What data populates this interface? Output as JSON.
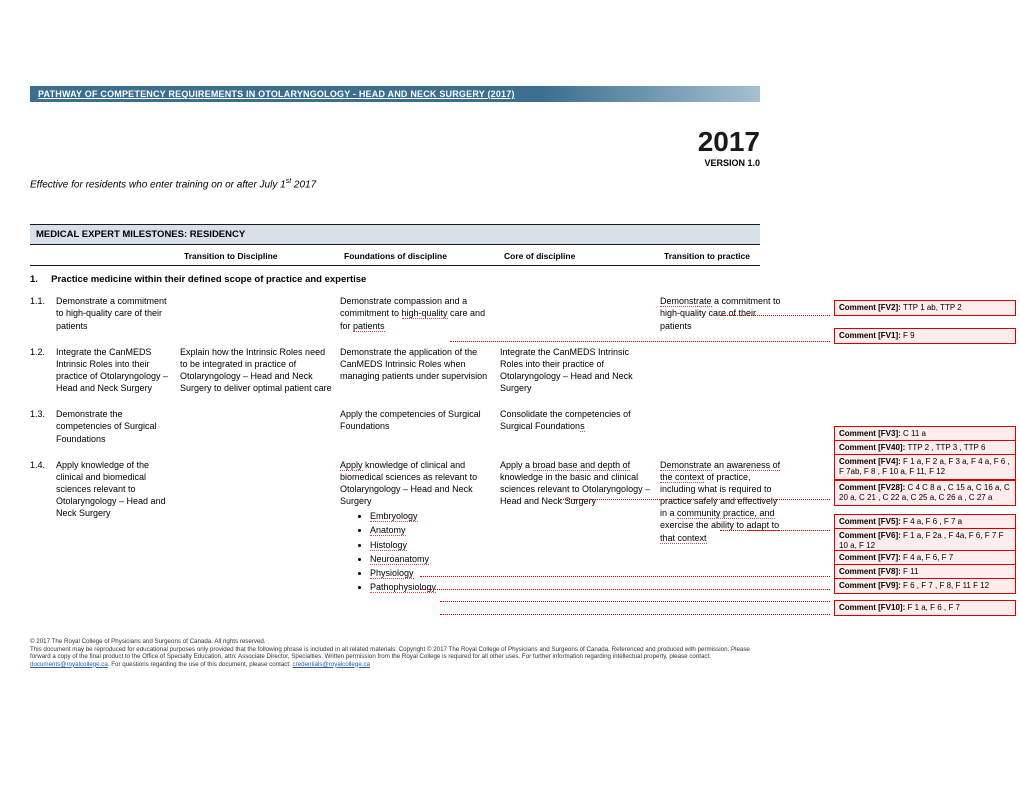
{
  "title_bar": "PATHWAY OF COMPETENCY REQUIREMENTS IN OTOLARYNGOLOGY  - HEAD AND NECK SURGERY (2017)",
  "year": "2017",
  "version": "VERSION 1.0",
  "effective_prefix": "Effective for residents who enter training on or after July 1",
  "effective_sup": "st",
  "effective_suffix": " 2017",
  "section_header": "MEDICAL EXPERT MILESTONES: RESIDENCY",
  "col_headers": {
    "c0": "",
    "c1": "Transition to Discipline",
    "c2": "Foundations of discipline",
    "c3": "Core of discipline",
    "c4": "Transition to practice"
  },
  "practice_heading_num": "1.",
  "practice_heading_txt": "Practice medicine within their defined scope of practice and expertise",
  "rows": {
    "r1": {
      "num": "1.1.",
      "label": "Demonstrate a commitment to high-quality care of their patients",
      "c1": "",
      "c2a": "Demonstrate compassion and a commitment to ",
      "c2b": "high-quality",
      "c2c": " care and for ",
      "c2d": "patients",
      "c3": "",
      "c4a": "Demonstrate",
      "c4b": " a commitment to high-quality care of their patients"
    },
    "r2": {
      "num": "1.2.",
      "label": "Integrate the CanMEDS Intrinsic Roles into their practice of Otolaryngology – Head and Neck Surgery",
      "c1": "Explain how the Intrinsic Roles need to be integrated in practice of Otolaryngology – Head and Neck Surgery  to deliver optimal patient care",
      "c2": "Demonstrate the application of the CanMEDS Intrinsic Roles when managing patients under supervision",
      "c3": "Integrate the CanMEDS Intrinsic Roles into their practice of Otolaryngology – Head and Neck Surgery",
      "c4": ""
    },
    "r3": {
      "num": "1.3.",
      "label": "Demonstrate the competencies of Surgical Foundations",
      "c1": "",
      "c2": "Apply the competencies of Surgical Foundations",
      "c3a": "Consolidate the competencies of Surgical Foundation",
      "c3b": "s",
      "c4": ""
    },
    "r4": {
      "num": "1.4.",
      "label": "Apply knowledge of the clinical and biomedical sciences relevant to Otolaryngology – Head and Neck Surgery",
      "c1": "",
      "c2_lead_a": "Apply",
      "c2_lead_b": " knowledge of clinical and biomedical sciences as relevant to Otolaryngology – Head and Neck Surgery",
      "c2_bullets": [
        "Embryology",
        "Anatomy",
        "Histology",
        "Neuroanatomy",
        "Physiology",
        "Pathophysiology"
      ],
      "c3a": "Apply a ",
      "c3b": "broad base and depth of",
      "c3c": " knowledge in the basic and clinical sciences relevant to Otolaryngology – Head and Neck Surgery",
      "c4a": "Demonstrate",
      "c4b": " an ",
      "c4c": "awareness of the context",
      "c4d": " of practice, including what is required to practice safely and effectively in a ",
      "c4e": "community practice, and",
      "c4f": " exercise the ability to ",
      "c4g": "adapt to that context"
    }
  },
  "footer": {
    "line1": "© 2017 The Royal College of Physicians and Surgeons of Canada. All rights reserved.",
    "line2a": "This document may be reproduced for educational purposes only provided that the following phrase is included in all related materials: Copyright © 2017 The Royal College of Physicians and Surgeons of Canada. Referenced and produced with permission. Please forward a copy of the final product to the Office of Specialty Education, attn: Associate Director, Specialties. Written permission from the Royal College is required for all other uses. For further information regarding intellectual property, please contact: ",
    "email1": "documents@royalcollege.ca",
    "line2b": ". For questions regarding the use of this document, please contact: ",
    "email2": "credentials@royalcollege.ca"
  },
  "comments": [
    {
      "id": "FV2",
      "txt": "TTP 1 ab, TTP 2"
    },
    {
      "id": "FV1",
      "txt": "F 9"
    },
    {
      "id": "FV3",
      "txt": "C 11 a"
    },
    {
      "id": "FV40",
      "txt": "TTP 2 , TTP 3 , TTP 6"
    },
    {
      "id": "FV4",
      "txt": "F 1 a, F 2 a, F 3 a, F 4 a, F 6 , F 7ab, F 8 , F 10 a, F 11, F 12"
    },
    {
      "id": "FV28",
      "txt": "C 4    C 8 a , C 15 a, C 16 a, C 20 a, C 21 , C 22 a, C 25 a, C 26 a , C 27 a"
    },
    {
      "id": "FV5",
      "txt": "F 4 a, F 6 , F 7 a"
    },
    {
      "id": "FV6",
      "txt": "F 1 a, F 2a , F 4a, F 6, F 7  F 10 a, F 12"
    },
    {
      "id": "FV7",
      "txt": "F 4 a, F 6, F 7"
    },
    {
      "id": "FV8",
      "txt": "F 11"
    },
    {
      "id": "FV9",
      "txt": "F 6 ,  F 7 , F 8, F 11  F 12"
    },
    {
      "id": "FV10",
      "txt": "F 1 a, F 6 , F 7"
    }
  ],
  "comment_label": "Comment [",
  "comment_close": "]: "
}
